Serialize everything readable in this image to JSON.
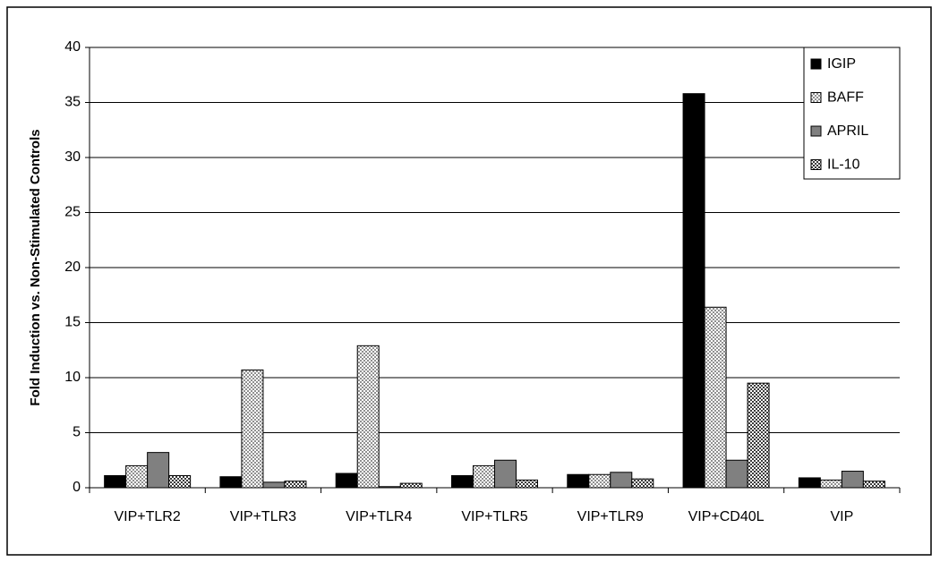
{
  "chart_data": {
    "type": "bar",
    "y_label": "Fold Induction vs. Non-Stimulated Controls",
    "categories": [
      "VIP+TLR2",
      "VIP+TLR3",
      "VIP+TLR4",
      "VIP+TLR5",
      "VIP+TLR9",
      "VIP+CD40L",
      "VIP"
    ],
    "series": [
      {
        "name": "IGIP",
        "color": "#000000",
        "values": [
          1.1,
          1.0,
          1.3,
          1.1,
          1.2,
          35.8,
          0.9
        ]
      },
      {
        "name": "BAFF",
        "color": "#909090",
        "pattern": "checker",
        "values": [
          2.0,
          10.7,
          12.9,
          2.0,
          1.2,
          16.4,
          0.7
        ]
      },
      {
        "name": "APRIL",
        "color": "#808080",
        "values": [
          3.2,
          0.5,
          0.1,
          2.5,
          1.4,
          2.5,
          1.5
        ]
      },
      {
        "name": "IL-10",
        "color": "#3a3a3a",
        "pattern": "checker",
        "values": [
          1.1,
          0.6,
          0.4,
          0.7,
          0.8,
          9.5,
          0.6
        ]
      }
    ],
    "ylim": [
      0,
      40
    ],
    "yticks": [
      0,
      5,
      10,
      15,
      20,
      25,
      30,
      35,
      40
    ],
    "grid": true,
    "legend": "top-right"
  }
}
